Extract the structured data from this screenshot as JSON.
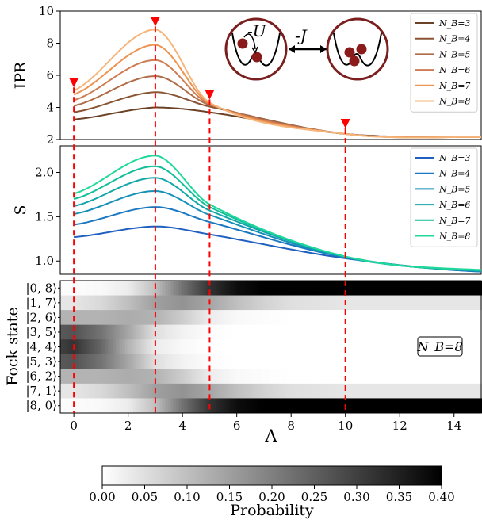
{
  "chart_data": [
    {
      "type": "line",
      "ylabel": "IPR",
      "xlim": [
        -0.5,
        15
      ],
      "ylim": [
        2,
        10
      ],
      "yticks": [
        2,
        4,
        6,
        8,
        10
      ],
      "legend_position": "top-right",
      "series": [
        {
          "name": "N_B=3",
          "color": "#6b4226",
          "x": [
            0,
            3,
            5,
            10,
            15
          ],
          "y": [
            3.25,
            4.0,
            3.7,
            2.35,
            2.15
          ]
        },
        {
          "name": "N_B=4",
          "color": "#8a5433",
          "x": [
            0,
            3,
            5,
            10,
            15
          ],
          "y": [
            3.7,
            4.95,
            4.05,
            2.35,
            2.15
          ]
        },
        {
          "name": "N_B=5",
          "color": "#b06c48",
          "x": [
            0,
            3,
            5,
            10,
            15
          ],
          "y": [
            4.1,
            5.95,
            4.15,
            2.35,
            2.15
          ]
        },
        {
          "name": "N_B=6",
          "color": "#cf7c55",
          "x": [
            0,
            3,
            5,
            10,
            15
          ],
          "y": [
            4.45,
            6.95,
            4.2,
            2.35,
            2.15
          ]
        },
        {
          "name": "N_B=7",
          "color": "#ee9350",
          "x": [
            0,
            3,
            5,
            10,
            15
          ],
          "y": [
            4.8,
            7.9,
            4.25,
            2.35,
            2.15
          ]
        },
        {
          "name": "N_B=8",
          "color": "#f6b57a",
          "x": [
            0,
            3,
            5,
            10,
            15
          ],
          "y": [
            5.05,
            8.85,
            4.3,
            2.35,
            2.15
          ]
        }
      ],
      "markers": {
        "x": [
          0,
          3,
          5,
          10
        ],
        "color": "#ff0000"
      },
      "annotations": {
        "u": "-U",
        "j": "-J"
      }
    },
    {
      "type": "line",
      "ylabel": "S",
      "xlim": [
        -0.5,
        15
      ],
      "ylim": [
        0.85,
        2.3
      ],
      "yticks": [
        1.0,
        1.5,
        2.0
      ],
      "legend_position": "top-right",
      "series": [
        {
          "name": "N_B=3",
          "color": "#1f5fbf",
          "x": [
            0,
            3,
            5,
            10,
            15
          ],
          "y": [
            1.27,
            1.39,
            1.3,
            1.03,
            0.88
          ]
        },
        {
          "name": "N_B=4",
          "color": "#1a78c2",
          "x": [
            0,
            3,
            5,
            10,
            15
          ],
          "y": [
            1.41,
            1.61,
            1.44,
            1.04,
            0.88
          ]
        },
        {
          "name": "N_B=5",
          "color": "#1690b8",
          "x": [
            0,
            3,
            5,
            10,
            15
          ],
          "y": [
            1.53,
            1.79,
            1.52,
            1.04,
            0.89
          ]
        },
        {
          "name": "N_B=6",
          "color": "#12a6a8",
          "x": [
            0,
            3,
            5,
            10,
            15
          ],
          "y": [
            1.62,
            1.94,
            1.57,
            1.05,
            0.89
          ]
        },
        {
          "name": "N_B=7",
          "color": "#12bd9a",
          "x": [
            0,
            3,
            5,
            10,
            15
          ],
          "y": [
            1.7,
            2.07,
            1.61,
            1.05,
            0.89
          ]
        },
        {
          "name": "N_B=8",
          "color": "#1fd89a",
          "x": [
            0,
            3,
            5,
            10,
            15
          ],
          "y": [
            1.76,
            2.19,
            1.64,
            1.05,
            0.9
          ]
        }
      ]
    },
    {
      "type": "heatmap",
      "ylabel": "Fock state",
      "xlabel": "Λ",
      "xlim": [
        -0.5,
        15
      ],
      "xticks": [
        0,
        2,
        4,
        6,
        8,
        10,
        12,
        14
      ],
      "label": "N_B=8",
      "rows": [
        "|0, 8⟩",
        "|1, 7⟩",
        "|2, 6⟩",
        "|3, 5⟩",
        "|4, 4⟩",
        "|5, 3⟩",
        "|6, 2⟩",
        "|7, 1⟩",
        "|8, 0⟩"
      ],
      "lambda_samples": [
        -0.5,
        0,
        1,
        2,
        3,
        4,
        5,
        6,
        7,
        8,
        10,
        12,
        15
      ],
      "probability": [
        [
          0.005,
          0.005,
          0.01,
          0.03,
          0.1,
          0.22,
          0.32,
          0.38,
          0.4,
          0.4,
          0.4,
          0.4,
          0.4
        ],
        [
          0.04,
          0.04,
          0.06,
          0.1,
          0.15,
          0.17,
          0.14,
          0.1,
          0.07,
          0.05,
          0.04,
          0.04,
          0.04
        ],
        [
          0.12,
          0.12,
          0.12,
          0.13,
          0.12,
          0.08,
          0.03,
          0.01,
          0.005,
          0.0,
          0.0,
          0.0,
          0.0
        ],
        [
          0.26,
          0.27,
          0.22,
          0.14,
          0.05,
          0.02,
          0.005,
          0.0,
          0.0,
          0.0,
          0.0,
          0.0,
          0.0
        ],
        [
          0.3,
          0.32,
          0.24,
          0.12,
          0.03,
          0.01,
          0.0,
          0.0,
          0.0,
          0.0,
          0.0,
          0.0,
          0.0
        ],
        [
          0.26,
          0.27,
          0.22,
          0.14,
          0.05,
          0.02,
          0.005,
          0.0,
          0.0,
          0.0,
          0.0,
          0.0,
          0.0
        ],
        [
          0.12,
          0.12,
          0.12,
          0.13,
          0.12,
          0.08,
          0.03,
          0.01,
          0.005,
          0.0,
          0.0,
          0.0,
          0.0
        ],
        [
          0.04,
          0.04,
          0.06,
          0.1,
          0.15,
          0.17,
          0.14,
          0.1,
          0.07,
          0.05,
          0.04,
          0.04,
          0.04
        ],
        [
          0.005,
          0.005,
          0.01,
          0.03,
          0.1,
          0.22,
          0.32,
          0.38,
          0.4,
          0.4,
          0.4,
          0.4,
          0.4
        ]
      ],
      "colorbar": {
        "label": "Probability",
        "range": [
          0,
          0.4
        ],
        "ticks": [
          "0.00",
          "0.05",
          "0.10",
          "0.15",
          "0.20",
          "0.25",
          "0.30",
          "0.35",
          "0.40"
        ]
      }
    }
  ]
}
